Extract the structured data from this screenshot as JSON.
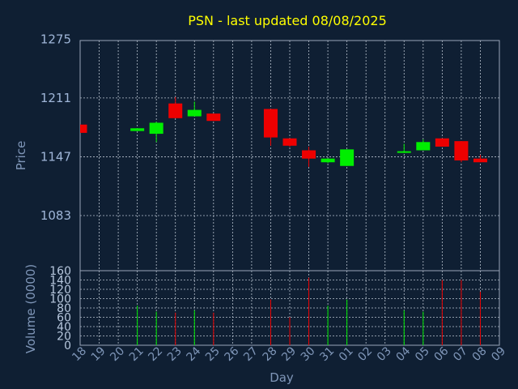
{
  "chart_data": [
    {
      "type": "candlestick",
      "title": "PSN - last updated 08/08/2025",
      "ylabel": "Price",
      "xlabel": "Day",
      "ylim": [
        1023,
        1273.5
      ],
      "yticks": [
        1083,
        1147,
        1211,
        1275
      ],
      "grid": true,
      "categories": [
        "18",
        "19",
        "20",
        "21",
        "22",
        "23",
        "24",
        "25",
        "26",
        "27",
        "28",
        "29",
        "30",
        "31",
        "01",
        "02",
        "03",
        "04",
        "05",
        "06",
        "07",
        "08",
        "09"
      ],
      "candles": [
        {
          "day": "18",
          "open": 1182,
          "high": 1182,
          "low": 1173,
          "close": 1173
        },
        {
          "day": "21",
          "open": 1175,
          "high": 1178,
          "low": 1175,
          "close": 1178
        },
        {
          "day": "22",
          "open": 1172,
          "high": 1185,
          "low": 1163,
          "close": 1184
        },
        {
          "day": "23",
          "open": 1205,
          "high": 1212,
          "low": 1189,
          "close": 1189
        },
        {
          "day": "24",
          "open": 1191,
          "high": 1207,
          "low": 1191,
          "close": 1198
        },
        {
          "day": "25",
          "open": 1194,
          "high": 1194,
          "low": 1186,
          "close": 1186
        },
        {
          "day": "28",
          "open": 1199,
          "high": 1199,
          "low": 1159,
          "close": 1168
        },
        {
          "day": "29",
          "open": 1167,
          "high": 1167,
          "low": 1158,
          "close": 1159
        },
        {
          "day": "30",
          "open": 1154,
          "high": 1158,
          "low": 1136,
          "close": 1145
        },
        {
          "day": "31",
          "open": 1141,
          "high": 1145,
          "low": 1140,
          "close": 1145
        },
        {
          "day": "01",
          "open": 1137,
          "high": 1155,
          "low": 1137,
          "close": 1155
        },
        {
          "day": "04",
          "open": 1152,
          "high": 1161,
          "low": 1151,
          "close": 1153
        },
        {
          "day": "05",
          "open": 1154,
          "high": 1166,
          "low": 1154,
          "close": 1163
        },
        {
          "day": "06",
          "open": 1167,
          "high": 1167,
          "low": 1158,
          "close": 1158
        },
        {
          "day": "07",
          "open": 1164,
          "high": 1164,
          "low": 1141,
          "close": 1143
        },
        {
          "day": "08",
          "open": 1145,
          "high": 1149,
          "low": 1141,
          "close": 1141
        }
      ],
      "colors": {
        "up": "#00ee00",
        "down": "#ee0000"
      }
    },
    {
      "type": "bar",
      "ylabel": "Volume (0000)",
      "ylim": [
        0,
        160
      ],
      "yticks": [
        0,
        20,
        40,
        60,
        80,
        100,
        120,
        140,
        160
      ],
      "bars": [
        {
          "day": "21",
          "value": 85,
          "direction": "up"
        },
        {
          "day": "22",
          "value": 72,
          "direction": "up"
        },
        {
          "day": "23",
          "value": 70,
          "direction": "down"
        },
        {
          "day": "24",
          "value": 75,
          "direction": "up"
        },
        {
          "day": "25",
          "value": 70,
          "direction": "down"
        },
        {
          "day": "28",
          "value": 98,
          "direction": "down"
        },
        {
          "day": "29",
          "value": 60,
          "direction": "down"
        },
        {
          "day": "30",
          "value": 145,
          "direction": "down"
        },
        {
          "day": "31",
          "value": 85,
          "direction": "up"
        },
        {
          "day": "01",
          "value": 98,
          "direction": "up"
        },
        {
          "day": "04",
          "value": 75,
          "direction": "up"
        },
        {
          "day": "05",
          "value": 72,
          "direction": "up"
        },
        {
          "day": "06",
          "value": 140,
          "direction": "down"
        },
        {
          "day": "07",
          "value": 140,
          "direction": "down"
        },
        {
          "day": "08",
          "value": 115,
          "direction": "down"
        }
      ]
    }
  ]
}
